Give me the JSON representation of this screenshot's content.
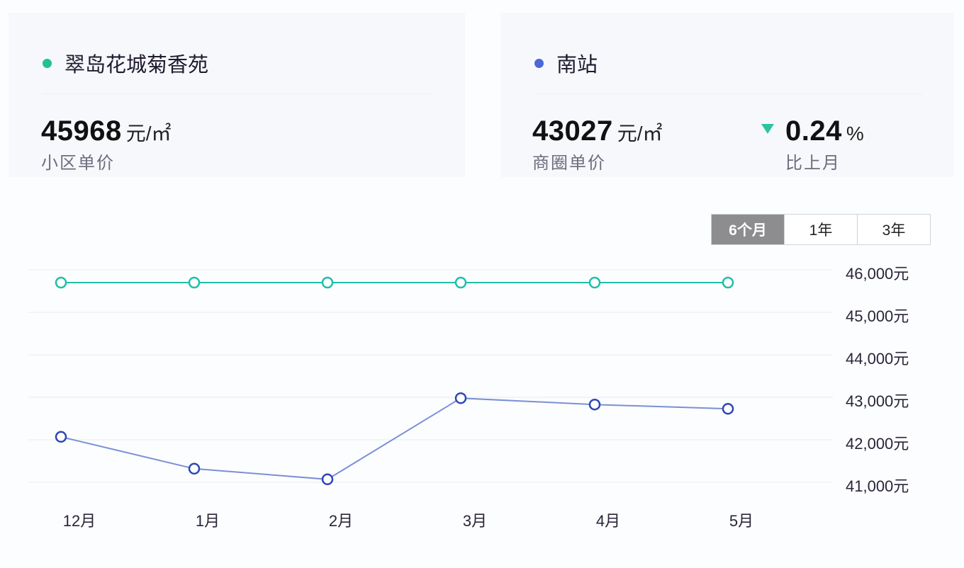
{
  "cards": {
    "community": {
      "name": "翠岛花城菊香苑",
      "dot_color": "#1fc196",
      "price": "45968",
      "unit": "元/㎡",
      "label": "小区单价"
    },
    "district": {
      "name": "南站",
      "dot_color": "#4a69d6",
      "price": "43027",
      "unit": "元/㎡",
      "label": "商圈单价",
      "change_value": "0.24",
      "change_unit": "%",
      "change_direction": "down",
      "change_label": "比上月",
      "change_color": "#2dc3a0"
    }
  },
  "range_selector": {
    "options": [
      "6个月",
      "1年",
      "3年"
    ],
    "selected": "6个月"
  },
  "chart_data": {
    "type": "line",
    "title": "",
    "xlabel": "",
    "ylabel": "",
    "categories": [
      "12月",
      "1月",
      "2月",
      "3月",
      "4月",
      "5月"
    ],
    "series": [
      {
        "name": "翠岛花城菊香苑",
        "color": "#1fbfa8",
        "values": [
          45700,
          45700,
          45700,
          45700,
          45700,
          45700
        ]
      },
      {
        "name": "南站",
        "color": "#2f46b4",
        "line_color": "#7a90d4",
        "values": [
          42070,
          41320,
          41070,
          42980,
          42830,
          42730
        ]
      }
    ],
    "y_ticks": [
      "46,000元",
      "45,000元",
      "44,000元",
      "43,000元",
      "42,000元",
      "41,000元"
    ],
    "y_tick_values": [
      46000,
      45000,
      44000,
      43000,
      42000,
      41000
    ],
    "ylim": [
      41000,
      46000
    ],
    "grid": true,
    "y_axis_position": "right",
    "legend": "none"
  }
}
